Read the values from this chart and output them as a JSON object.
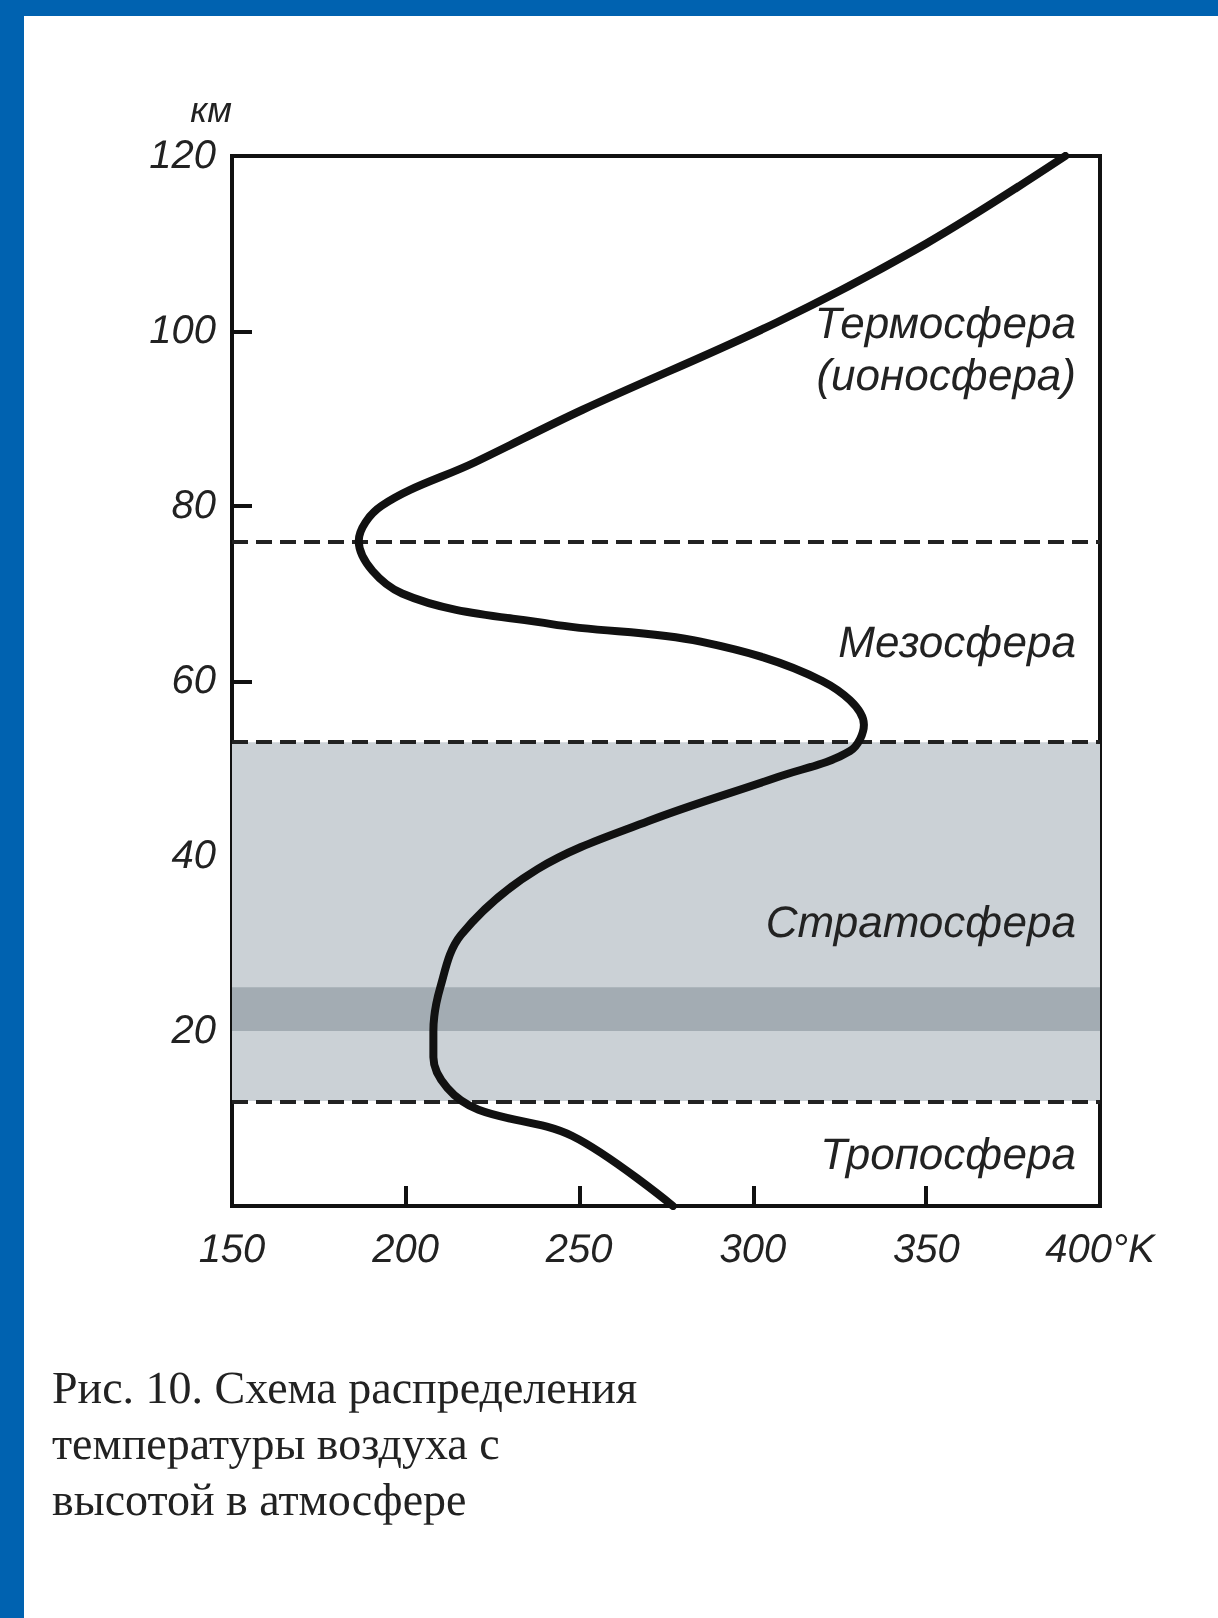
{
  "chart_data": {
    "type": "line",
    "ylabel": "км",
    "xlim": [
      150,
      400
    ],
    "xticks": [
      150,
      200,
      250,
      300,
      350,
      {
        "value": 400,
        "label": "400°K"
      }
    ],
    "ylim": [
      0,
      120
    ],
    "yticks": [
      20,
      40,
      60,
      80,
      100,
      120
    ],
    "grid": false,
    "marker": "none",
    "line_style": "solid",
    "series": [
      {
        "color": "#111111",
        "x": [
          277,
          248,
          221,
          212,
          208,
          208,
          210,
          216,
          238,
          270,
          307,
          328,
          332,
          320,
          285,
          242,
          199,
          186.5,
          193,
          220,
          251,
          307,
          350,
          390
        ],
        "values": [
          0,
          8,
          11,
          13.5,
          17,
          20,
          25,
          31,
          38.5,
          44,
          49,
          52,
          55,
          60,
          64.5,
          66.5,
          70,
          76,
          80,
          85,
          91,
          101,
          110,
          120
        ]
      }
    ],
    "ref_lines": [
      {
        "axis": "y",
        "value": 12,
        "line_style": "dashed",
        "color": "#222222"
      },
      {
        "axis": "y",
        "value": 53,
        "line_style": "dashed",
        "color": "#222222"
      },
      {
        "axis": "y",
        "value": 76,
        "line_style": "dashed",
        "color": "#222222"
      }
    ],
    "bands": [
      {
        "axis": "y",
        "from": 12,
        "to": 53,
        "color": "#cbd1d6"
      },
      {
        "axis": "y",
        "from": 20,
        "to": 25,
        "color": "#a3acb3"
      }
    ],
    "annotations": [
      "Термосфера\n(ионосфера)",
      "Мезосфера",
      "Стратосфера",
      "Тропосфера",
      "Рис. 10. Схема распределения температуры воздуха с высотой в атмосфере"
    ]
  }
}
